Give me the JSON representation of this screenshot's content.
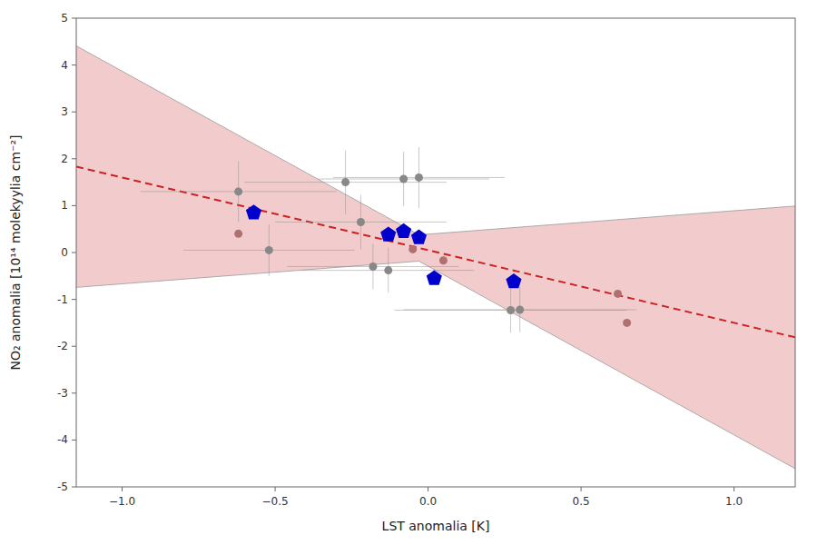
{
  "chart_data": {
    "type": "scatter",
    "x_label": "LST anomalia [K]",
    "y_label": "NO₂ anomalia [10¹⁴ molekyylia cm⁻²]",
    "xlim": [
      -1.15,
      1.2
    ],
    "ylim": [
      -5,
      5
    ],
    "xticks": [
      {
        "value": -1.0,
        "label": "−1.0"
      },
      {
        "value": -0.5,
        "label": "−0.5"
      },
      {
        "value": 0.0,
        "label": "0.0"
      },
      {
        "value": 0.5,
        "label": "0.5"
      },
      {
        "value": 1.0,
        "label": "1.0"
      }
    ],
    "yticks": [
      -5,
      -4,
      -3,
      -2,
      -1,
      0,
      1,
      2,
      3,
      4,
      5
    ],
    "grid": false,
    "series": [
      {
        "type": "area",
        "color": "#cc3333",
        "x": [
          -1.15,
          -0.03,
          1.2
        ],
        "upper": [
          4.4085,
          0.3765,
          0.9915
        ],
        "lower": [
          -0.7435,
          -0.1835,
          -4.6115
        ]
      },
      {
        "type": "line",
        "color": "#cc2222",
        "line_style": "dashed",
        "x": [
          -1.15,
          1.2
        ],
        "values": [
          1.8325,
          -1.81
        ]
      },
      {
        "type": "scatter",
        "color": "#888888",
        "marker": "circle",
        "x": [
          -0.62,
          -0.52,
          -0.27,
          -0.22,
          -0.18,
          -0.13,
          -0.08,
          -0.03,
          0.27,
          0.3
        ],
        "values": [
          1.3,
          0.05,
          1.5,
          0.65,
          -0.3,
          -0.38,
          1.57,
          1.6,
          -1.23,
          -1.22
        ],
        "x_errors": [
          0.32,
          0.28,
          0.33,
          0.28,
          0.28,
          0.28,
          0.28,
          0.28,
          0.38,
          0.38
        ],
        "y_errors": [
          0.65,
          0.55,
          0.68,
          0.58,
          0.48,
          0.48,
          0.58,
          0.65,
          0.48,
          0.48
        ]
      },
      {
        "type": "scatter",
        "color": "#b07070",
        "marker": "circle",
        "x": [
          -0.62,
          -0.05,
          0.05,
          0.62,
          0.65
        ],
        "values": [
          0.4,
          0.07,
          -0.17,
          -0.88,
          -1.5
        ]
      },
      {
        "type": "scatter",
        "color": "#0000cc",
        "marker": "pentagon",
        "x": [
          -0.57,
          -0.13,
          -0.08,
          -0.03,
          0.02,
          0.28
        ],
        "values": [
          0.85,
          0.38,
          0.45,
          0.32,
          -0.55,
          -0.62
        ]
      }
    ]
  }
}
